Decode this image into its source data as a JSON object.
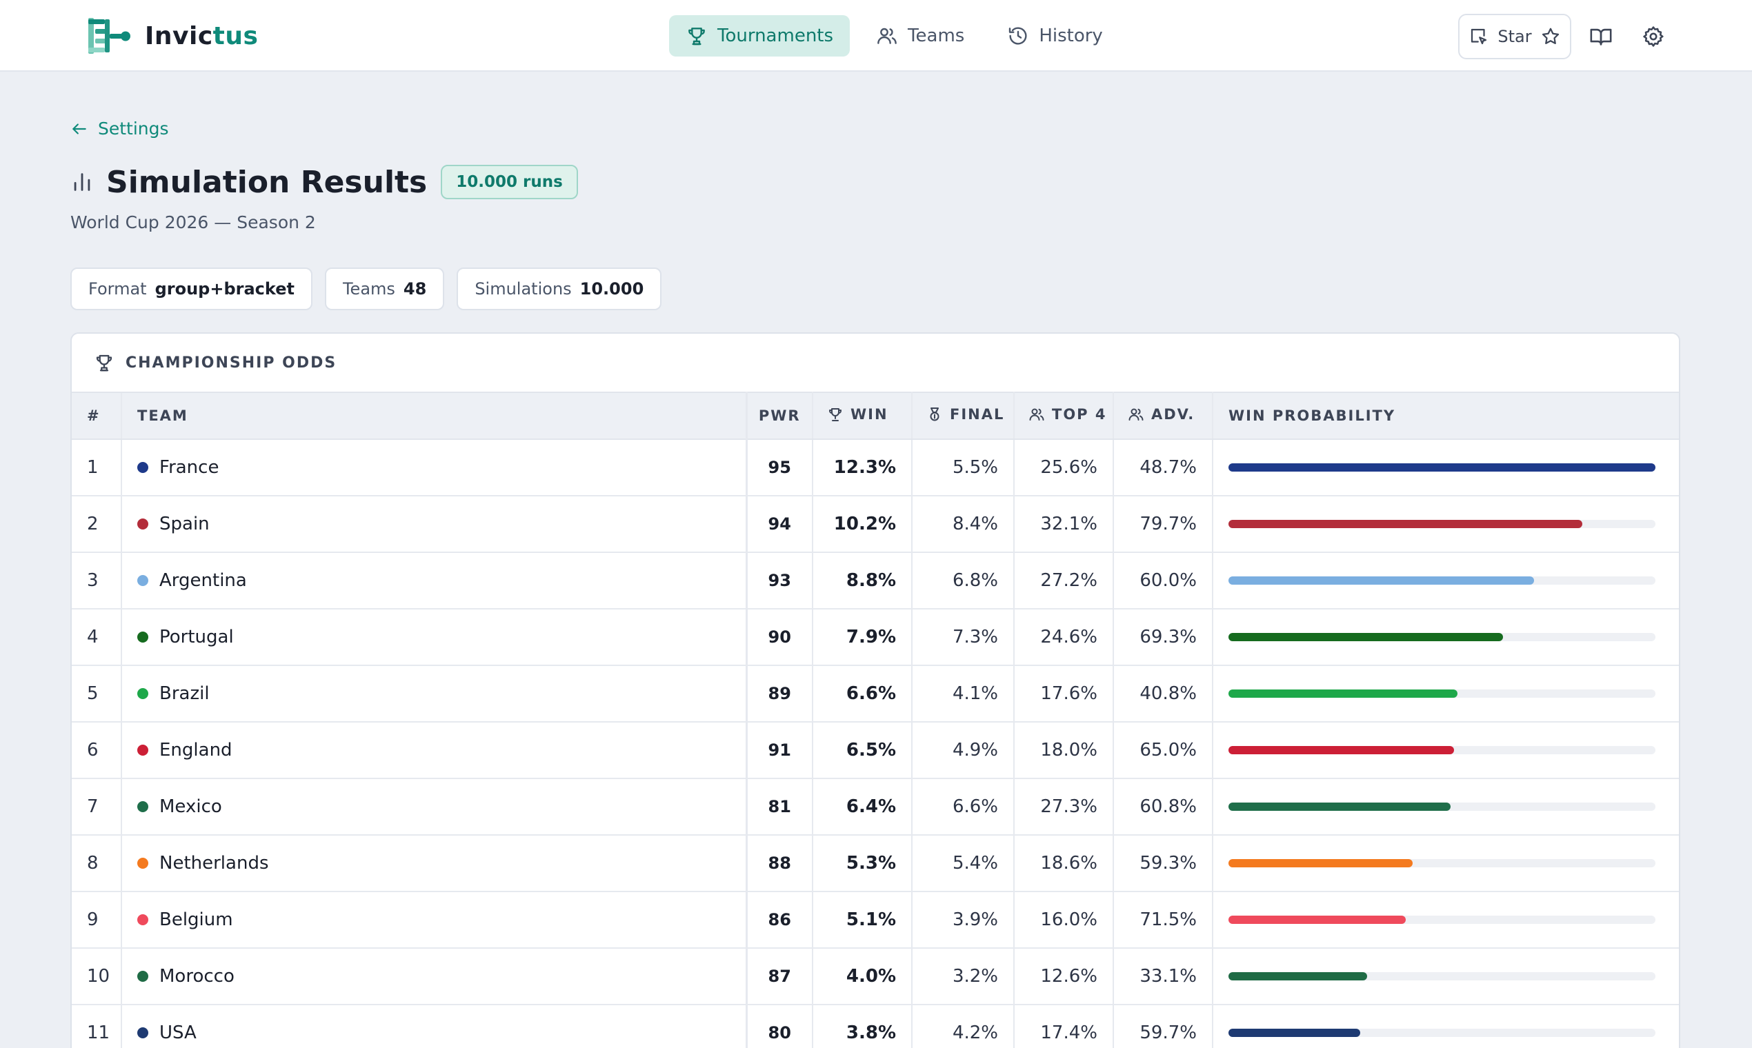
{
  "app": {
    "name_part1": "Invic",
    "name_part2": "tus"
  },
  "nav": [
    {
      "label": "Tournaments",
      "icon": "trophy-icon",
      "active": true
    },
    {
      "label": "Teams",
      "icon": "users-icon",
      "active": false
    },
    {
      "label": "History",
      "icon": "history-icon",
      "active": false
    }
  ],
  "header_actions": {
    "star_label": "Star"
  },
  "breadcrumb": {
    "back_label": "Settings"
  },
  "page": {
    "title": "Simulation Results",
    "runs_badge": "10.000 runs",
    "subtitle": "World Cup 2026 — Season 2"
  },
  "summary": [
    {
      "label": "Format",
      "value": "group+bracket"
    },
    {
      "label": "Teams",
      "value": "48"
    },
    {
      "label": "Simulations",
      "value": "10.000"
    }
  ],
  "odds": {
    "title": "CHAMPIONSHIP ODDS",
    "columns": {
      "rank": "#",
      "team": "TEAM",
      "pwr": "PWR",
      "win": "WIN",
      "final": "FINAL",
      "top4": "TOP 4",
      "adv": "ADV.",
      "bar": "WIN PROBABILITY"
    },
    "max_win": 12.3,
    "rows": [
      {
        "rank": "1",
        "team": "France",
        "color": "#1e3a8a",
        "pwr": "95",
        "win": "12.3%",
        "final": "5.5%",
        "top4": "25.6%",
        "adv": "48.7%",
        "win_value": 12.3
      },
      {
        "rank": "2",
        "team": "Spain",
        "color": "#b32d3a",
        "pwr": "94",
        "win": "10.2%",
        "final": "8.4%",
        "top4": "32.1%",
        "adv": "79.7%",
        "win_value": 10.2
      },
      {
        "rank": "3",
        "team": "Argentina",
        "color": "#7aaee0",
        "pwr": "93",
        "win": "8.8%",
        "final": "6.8%",
        "top4": "27.2%",
        "adv": "60.0%",
        "win_value": 8.8
      },
      {
        "rank": "4",
        "team": "Portugal",
        "color": "#166b1f",
        "pwr": "90",
        "win": "7.9%",
        "final": "7.3%",
        "top4": "24.6%",
        "adv": "69.3%",
        "win_value": 7.9
      },
      {
        "rank": "5",
        "team": "Brazil",
        "color": "#1ea84a",
        "pwr": "89",
        "win": "6.6%",
        "final": "4.1%",
        "top4": "17.6%",
        "adv": "40.8%",
        "win_value": 6.6
      },
      {
        "rank": "6",
        "team": "England",
        "color": "#cc1f36",
        "pwr": "91",
        "win": "6.5%",
        "final": "4.9%",
        "top4": "18.0%",
        "adv": "65.0%",
        "win_value": 6.5
      },
      {
        "rank": "7",
        "team": "Mexico",
        "color": "#1f6e4a",
        "pwr": "81",
        "win": "6.4%",
        "final": "6.6%",
        "top4": "27.3%",
        "adv": "60.8%",
        "win_value": 6.4
      },
      {
        "rank": "8",
        "team": "Netherlands",
        "color": "#f47a1f",
        "pwr": "88",
        "win": "5.3%",
        "final": "5.4%",
        "top4": "18.6%",
        "adv": "59.3%",
        "win_value": 5.3
      },
      {
        "rank": "9",
        "team": "Belgium",
        "color": "#ef4a5c",
        "pwr": "86",
        "win": "5.1%",
        "final": "3.9%",
        "top4": "16.0%",
        "adv": "71.5%",
        "win_value": 5.1
      },
      {
        "rank": "10",
        "team": "Morocco",
        "color": "#1f6b45",
        "pwr": "87",
        "win": "4.0%",
        "final": "3.2%",
        "top4": "12.6%",
        "adv": "33.1%",
        "win_value": 4.0
      },
      {
        "rank": "11",
        "team": "USA",
        "color": "#1e3a72",
        "pwr": "80",
        "win": "3.8%",
        "final": "4.2%",
        "top4": "17.4%",
        "adv": "59.7%",
        "win_value": 3.8
      }
    ]
  }
}
